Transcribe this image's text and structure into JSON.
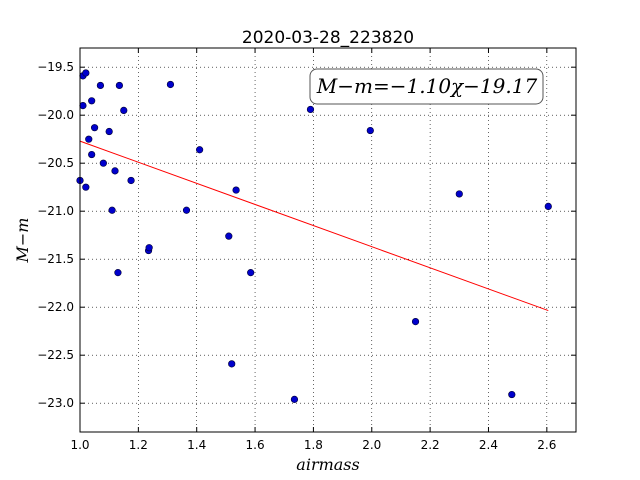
{
  "chart_data": {
    "type": "scatter",
    "title": "2020-03-28_223820",
    "xlabel": "airmass",
    "ylabel": "M−m",
    "xlim": [
      1.0,
      2.7
    ],
    "ylim": [
      -23.3,
      -19.3
    ],
    "x_ticks": [
      1.0,
      1.2,
      1.4,
      1.6,
      1.8,
      2.0,
      2.2,
      2.4,
      2.6
    ],
    "x_tick_labels": [
      "1.0",
      "1.2",
      "1.4",
      "1.6",
      "1.8",
      "2.0",
      "2.2",
      "2.4",
      "2.6"
    ],
    "y_ticks": [
      -19.5,
      -20.0,
      -20.5,
      -21.0,
      -21.5,
      -22.0,
      -22.5,
      -23.0
    ],
    "y_tick_labels": [
      "−19.5",
      "−20.0",
      "−20.5",
      "−21.0",
      "−21.5",
      "−22.0",
      "−22.5",
      "−23.0"
    ],
    "grid": true,
    "annotation": "M−m=−1.10χ−19.17",
    "annotation_position": "top-right",
    "series": [
      {
        "marker": "circle",
        "color": "#0000cc",
        "points": [
          [
            1.0,
            -20.68
          ],
          [
            1.01,
            -19.9
          ],
          [
            1.01,
            -19.59
          ],
          [
            1.02,
            -19.56
          ],
          [
            1.02,
            -20.75
          ],
          [
            1.03,
            -20.25
          ],
          [
            1.04,
            -19.85
          ],
          [
            1.04,
            -20.41
          ],
          [
            1.05,
            -20.13
          ],
          [
            1.07,
            -19.69
          ],
          [
            1.08,
            -20.5
          ],
          [
            1.1,
            -20.17
          ],
          [
            1.11,
            -20.99
          ],
          [
            1.12,
            -20.58
          ],
          [
            1.13,
            -21.64
          ],
          [
            1.135,
            -19.69
          ],
          [
            1.15,
            -19.95
          ],
          [
            1.175,
            -20.68
          ],
          [
            1.235,
            -21.41
          ],
          [
            1.237,
            -21.38
          ],
          [
            1.31,
            -19.68
          ],
          [
            1.365,
            -20.99
          ],
          [
            1.41,
            -20.36
          ],
          [
            1.51,
            -21.26
          ],
          [
            1.52,
            -22.59
          ],
          [
            1.535,
            -20.78
          ],
          [
            1.585,
            -21.64
          ],
          [
            1.735,
            -22.96
          ],
          [
            1.79,
            -19.94
          ],
          [
            1.995,
            -20.16
          ],
          [
            2.15,
            -22.15
          ],
          [
            2.3,
            -20.82
          ],
          [
            2.48,
            -22.91
          ],
          [
            2.605,
            -20.95
          ]
        ]
      },
      {
        "name": "fit",
        "type": "line",
        "color": "#ff0000",
        "x": [
          1.0,
          2.605
        ],
        "y": [
          -20.27,
          -22.035
        ]
      }
    ]
  }
}
